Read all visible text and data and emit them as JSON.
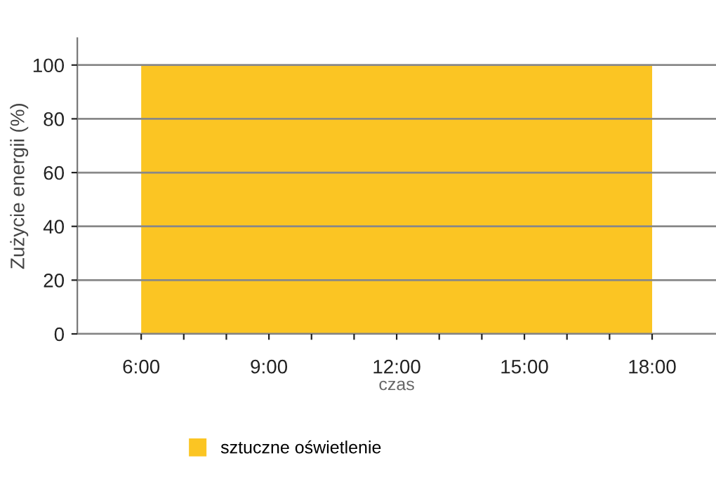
{
  "chart_data": {
    "type": "area",
    "xlabel": "czas",
    "ylabel": "Zużycie energii (%)",
    "x": [
      6,
      18
    ],
    "series": [
      {
        "name": "sztuczne oświetlenie",
        "color": "#fbc523",
        "values": [
          100,
          100
        ]
      }
    ],
    "xlim": [
      4.5,
      19.5
    ],
    "xticks": [
      {
        "value": 6,
        "label": "6:00"
      },
      {
        "value": 7,
        "label": null
      },
      {
        "value": 8,
        "label": null
      },
      {
        "value": 9,
        "label": "9:00"
      },
      {
        "value": 10,
        "label": null
      },
      {
        "value": 11,
        "label": null
      },
      {
        "value": 12,
        "label": "12:00"
      },
      {
        "value": 13,
        "label": null
      },
      {
        "value": 14,
        "label": null
      },
      {
        "value": 15,
        "label": "15:00"
      },
      {
        "value": 16,
        "label": null
      },
      {
        "value": 17,
        "label": null
      },
      {
        "value": 18,
        "label": "18:00"
      }
    ],
    "ylim": [
      0,
      110
    ],
    "yticks": [
      0,
      20,
      40,
      60,
      80,
      100
    ],
    "grid": "y",
    "legend": "bottom"
  }
}
